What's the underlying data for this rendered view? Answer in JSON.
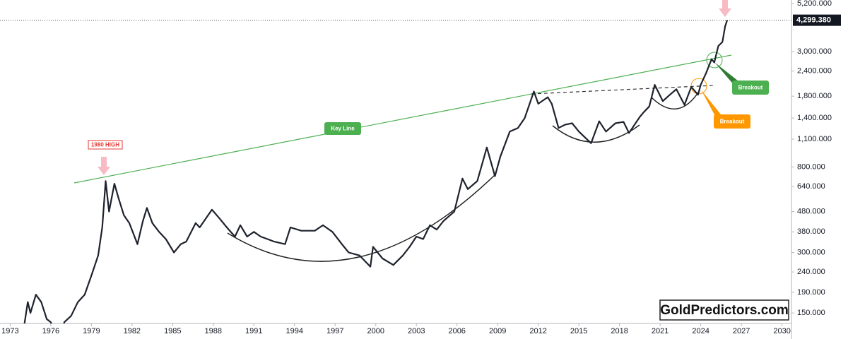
{
  "chart_data": {
    "type": "line",
    "log_scale": true,
    "color": "#1e222d",
    "x": [
      1974.0,
      1974.3,
      1974.5,
      1974.9,
      1975.3,
      1975.7,
      1976.0,
      1976.6,
      1977.0,
      1977.5,
      1978.0,
      1978.5,
      1979.0,
      1979.5,
      1979.8,
      1980.05,
      1980.3,
      1980.7,
      1981.0,
      1981.4,
      1981.8,
      1982.4,
      1982.8,
      1983.1,
      1983.5,
      1984.0,
      1984.5,
      1985.1,
      1985.6,
      1986.0,
      1986.7,
      1987.0,
      1987.9,
      1988.5,
      1989.0,
      1989.6,
      1990.0,
      1990.5,
      1991.0,
      1991.5,
      1992.0,
      1992.5,
      1993.3,
      1993.7,
      1994.5,
      1995.5,
      1996.1,
      1996.8,
      1997.5,
      1998.0,
      1998.8,
      1999.6,
      1999.8,
      2000.5,
      2001.3,
      2002.0,
      2002.5,
      2003.0,
      2003.5,
      2004.0,
      2004.5,
      2005.0,
      2005.8,
      2006.4,
      2006.8,
      2007.5,
      2008.2,
      2008.8,
      2009.2,
      2009.9,
      2010.5,
      2011.0,
      2011.68,
      2012.0,
      2012.7,
      2013.0,
      2013.5,
      2014.0,
      2014.5,
      2015.0,
      2015.9,
      2016.5,
      2017.0,
      2017.7,
      2018.3,
      2018.7,
      2019.5,
      2019.8,
      2020.2,
      2020.6,
      2021.2,
      2021.6,
      2022.2,
      2022.8,
      2023.3,
      2023.8,
      2024.0,
      2024.4,
      2024.8,
      2025.0,
      2025.3,
      2025.6,
      2025.8,
      2025.95
    ],
    "values": [
      125,
      170,
      150,
      185,
      170,
      140,
      135,
      105,
      135,
      145,
      170,
      185,
      230,
      290,
      400,
      680,
      480,
      660,
      560,
      460,
      420,
      330,
      430,
      500,
      420,
      380,
      350,
      300,
      330,
      340,
      420,
      400,
      490,
      440,
      400,
      360,
      410,
      360,
      380,
      360,
      350,
      340,
      330,
      400,
      385,
      385,
      410,
      380,
      330,
      300,
      290,
      255,
      320,
      280,
      260,
      290,
      320,
      360,
      350,
      410,
      390,
      430,
      480,
      700,
      620,
      680,
      1000,
      720,
      900,
      1200,
      1250,
      1400,
      1900,
      1650,
      1780,
      1650,
      1250,
      1300,
      1320,
      1200,
      1050,
      1350,
      1200,
      1320,
      1340,
      1180,
      1420,
      1500,
      1600,
      2050,
      1700,
      1800,
      1950,
      1630,
      2000,
      1830,
      2050,
      2350,
      2750,
      2650,
      3200,
      3350,
      4000,
      4299.38
    ],
    "xlim": [
      1972.25,
      2030.7
    ],
    "xticks": [
      1973,
      1976,
      1979,
      1982,
      1985,
      1988,
      1991,
      1994,
      1997,
      2000,
      2003,
      2006,
      2009,
      2012,
      2015,
      2018,
      2021,
      2024,
      2027,
      2030
    ],
    "ylim": [
      133,
      5420
    ],
    "yticks": [
      {
        "value": 150,
        "label": "150.000"
      },
      {
        "value": 190,
        "label": "190.000"
      },
      {
        "value": 240,
        "label": "240.000"
      },
      {
        "value": 300,
        "label": "300.000"
      },
      {
        "value": 380,
        "label": "380.000"
      },
      {
        "value": 480,
        "label": "480.000"
      },
      {
        "value": 640,
        "label": "640.000"
      },
      {
        "value": 800,
        "label": "800.000"
      },
      {
        "value": 1100,
        "label": "1,100.000"
      },
      {
        "value": 1400,
        "label": "1,400.000"
      },
      {
        "value": 1800,
        "label": "1,800.000"
      },
      {
        "value": 2400,
        "label": "2,400.000"
      },
      {
        "value": 3000,
        "label": "3,000.000"
      },
      {
        "value": 5200,
        "label": "5,200.000"
      }
    ],
    "last_price": {
      "value": 4299.38,
      "label": "4,299.380"
    },
    "annotations": [
      "1980 HIGH",
      "Key Line",
      "Breakout",
      "Breakout"
    ],
    "watermark": "GoldPredictors.com"
  }
}
